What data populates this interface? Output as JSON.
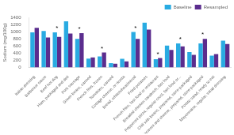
{
  "chart_data": {
    "type": "bar",
    "categories": [
      "Italian dressing",
      "Barbecue sauce",
      "Beef hot dog",
      "Ham, packaged and deli",
      "Pork sausage",
      "Green beans, canned",
      "French fries, frozen",
      "Tomatoes, canned",
      "Cottage cheese, or ricotta",
      "Bread, white/wheat/mixed",
      "Fried potatoes",
      "French fries, fast food or restaurant",
      "Breaded chicken sandwich, fast food",
      "Pepperoni pizza, regular crust, fast food or...",
      "Chili with beans, prepared, store-packaged",
      "Macaroni and cheese, prepared, store-packaged",
      "Potato salad, ready to eat",
      "Mayonnaise, regular, salad dressing"
    ],
    "series": [
      {
        "name": "Baseline",
        "color": "#29abe2",
        "values": [
          980,
          1020,
          980,
          1290,
          800,
          250,
          310,
          120,
          240,
          990,
          1250,
          230,
          610,
          670,
          430,
          670,
          330,
          750
        ]
      },
      {
        "name": "Resampled",
        "color": "#5b2d8e",
        "values": [
          1110,
          840,
          855,
          950,
          960,
          280,
          420,
          105,
          170,
          800,
          1060,
          265,
          490,
          590,
          355,
          800,
          375,
          655
        ]
      }
    ],
    "ylabel": "Sodium (mg/100g)",
    "ylim": [
      0,
      1400
    ],
    "yticks": [
      0,
      200,
      400,
      600,
      800,
      1000,
      1200,
      1400
    ],
    "grid": false,
    "legend": "upper right",
    "annotations": [
      {
        "text": "*",
        "category": "Beef hot dog"
      },
      {
        "text": "*",
        "category": "Pork sausage"
      },
      {
        "text": "*",
        "category": "French fries, frozen"
      },
      {
        "text": "*",
        "category": "Bread, white/wheat/mixed"
      },
      {
        "text": "*",
        "category": "French fries, fast food or restaurant"
      },
      {
        "text": "*",
        "category": "Pepperoni pizza, regular crust, fast food or..."
      },
      {
        "text": "*",
        "category": "Macaroni and cheese, prepared, store-packaged"
      }
    ]
  }
}
